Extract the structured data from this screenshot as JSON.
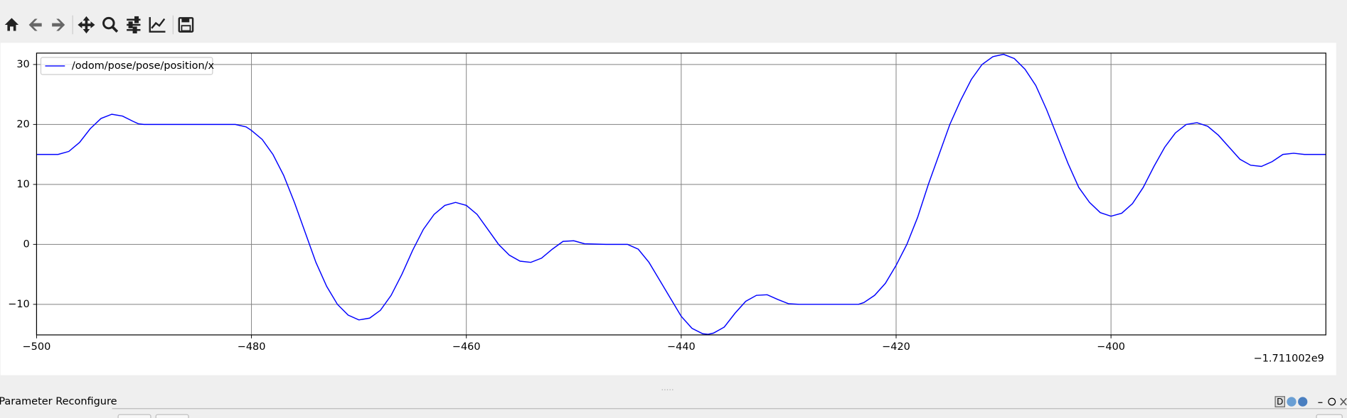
{
  "dock": {
    "title": "Parameter Reconfigure",
    "button": "D"
  },
  "chart_data": {
    "type": "line",
    "x": [
      -500,
      -498,
      -497,
      -496,
      -495,
      -494,
      -493,
      -492,
      -491,
      -490.5,
      -490,
      -485,
      -481.5,
      -480.5,
      -480,
      -479,
      -478,
      -477,
      -476,
      -475,
      -474,
      -473,
      -472,
      -471,
      -470,
      -469,
      -468,
      -467,
      -466,
      -465,
      -464,
      -463,
      -462,
      -461,
      -460,
      -459,
      -458,
      -457,
      -456,
      -455,
      -454,
      -453,
      -452,
      -451,
      -450,
      -449,
      -447,
      -445,
      -444,
      -443,
      -442,
      -441,
      -440,
      -439,
      -438,
      -437.5,
      -437,
      -436,
      -435,
      -434,
      -433,
      -432,
      -431,
      -430,
      -429,
      -423.5,
      -423,
      -422,
      -421,
      -420,
      -419,
      -418,
      -417,
      -416,
      -415,
      -414,
      -413,
      -412,
      -411,
      -410,
      -409,
      -408,
      -407,
      -406,
      -405,
      -404,
      -403,
      -402,
      -401,
      -400,
      -399,
      -398,
      -397,
      -396,
      -395,
      -394,
      -393,
      -392,
      -391,
      -390,
      -389,
      -388,
      -387,
      -386,
      -385,
      -384,
      -383,
      -382,
      -380
    ],
    "series": [
      {
        "name": "/odom/pose/pose/position/x",
        "color": "#0000ff",
        "values": [
          15,
          15,
          15.5,
          17,
          19.3,
          21,
          21.7,
          21.4,
          20.5,
          20.1,
          20,
          20,
          20,
          19.6,
          19,
          17.5,
          15,
          11.5,
          7,
          2,
          -3,
          -7,
          -10,
          -11.8,
          -12.6,
          -12.3,
          -11,
          -8.5,
          -5,
          -1,
          2.5,
          5,
          6.5,
          7,
          6.5,
          5,
          2.5,
          0,
          -1.8,
          -2.8,
          -3,
          -2.3,
          -0.8,
          0.5,
          0.6,
          0.1,
          0,
          0,
          -0.8,
          -3,
          -6,
          -9,
          -12,
          -14,
          -14.9,
          -15,
          -14.8,
          -13.8,
          -11.5,
          -9.5,
          -8.5,
          -8.4,
          -9.2,
          -9.9,
          -10,
          -10,
          -9.7,
          -8.5,
          -6.5,
          -3.5,
          0,
          4.5,
          10,
          15,
          20,
          24,
          27.5,
          30,
          31.3,
          31.7,
          31,
          29.2,
          26.5,
          22.5,
          18,
          13.5,
          9.5,
          7,
          5.3,
          4.7,
          5.2,
          6.8,
          9.5,
          13,
          16.2,
          18.6,
          20,
          20.3,
          19.7,
          18.2,
          16.2,
          14.2,
          13.2,
          13,
          13.8,
          15,
          15.2,
          15,
          15
        ]
      }
    ],
    "xlim": [
      -500,
      -380
    ],
    "ylim": [
      -15.1,
      31.9
    ],
    "xticks": [
      {
        "value": -500,
        "label": "−500"
      },
      {
        "value": -480,
        "label": "−480"
      },
      {
        "value": -460,
        "label": "−460"
      },
      {
        "value": -440,
        "label": "−440"
      },
      {
        "value": -420,
        "label": "−420"
      },
      {
        "value": -400,
        "label": "−400"
      }
    ],
    "yticks": [
      {
        "value": -10,
        "label": "−10"
      },
      0,
      10,
      20,
      30
    ],
    "x_offset_label": "−1.711002e9",
    "grid": true,
    "legend": "upper left"
  }
}
